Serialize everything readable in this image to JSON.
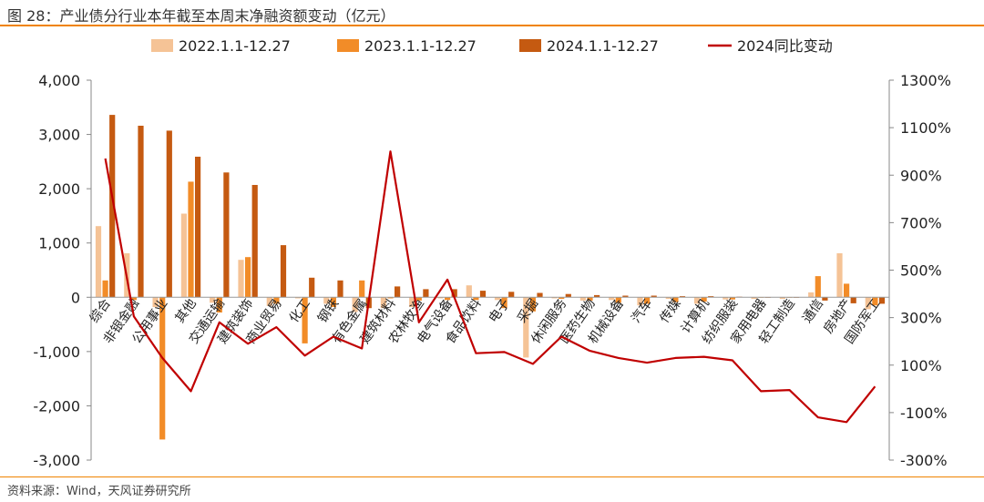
{
  "header": {
    "title": "图 28：产业债分行业本年截至本周末净融资额变动（亿元）"
  },
  "footer": {
    "source": "资料来源：Wind，天风证券研究所"
  },
  "colors": {
    "series1": "#f5c396",
    "series2": "#f28c28",
    "series3": "#c55a11",
    "line": "#c00000",
    "accent": "#f08300"
  },
  "chart_data": {
    "type": "bar",
    "title": "",
    "xlabel": "",
    "ylabel": "",
    "legend_position": "top",
    "grid": false,
    "ylim": [
      -3000,
      4000
    ],
    "y_ticks": [
      "4,000",
      "3,000",
      "2,000",
      "1,000",
      "0",
      "-1,000",
      "-2,000",
      "-3,000"
    ],
    "y2lim": [
      -3,
      13
    ],
    "y2_ticks": [
      "1300%",
      "1100%",
      "900%",
      "700%",
      "500%",
      "300%",
      "100%",
      "-100%",
      "-300%"
    ],
    "categories": [
      "综合",
      "非银金融",
      "公用事业",
      "其他",
      "交通运输",
      "建筑装饰",
      "商业贸易",
      "化工",
      "钢铁",
      "有色金属",
      "建筑材料",
      "农林牧渔",
      "电气设备",
      "食品饮料",
      "电子",
      "采掘",
      "休闲服务",
      "医药生物",
      "机械设备",
      "汽车",
      "传媒",
      "计算机",
      "纺织服装",
      "家用电器",
      "轻工制造",
      "通信",
      "房地产",
      "国防军工"
    ],
    "series": [
      {
        "name": "2022.1.1-12.27",
        "values": [
          1310,
          810,
          -180,
          1540,
          -100,
          690,
          -160,
          -20,
          -120,
          -270,
          -200,
          -180,
          -20,
          220,
          -50,
          -1110,
          -20,
          -60,
          -50,
          -150,
          -30,
          -120,
          -40,
          -30,
          -30,
          90,
          810,
          -220
        ]
      },
      {
        "name": "2023.1.1-12.27",
        "values": [
          310,
          -50,
          -2620,
          2130,
          -280,
          740,
          -120,
          -850,
          -180,
          310,
          -20,
          -60,
          -50,
          -50,
          -200,
          -260,
          -30,
          -60,
          -100,
          -120,
          -90,
          -80,
          -40,
          0,
          0,
          390,
          250,
          -150
        ]
      },
      {
        "name": "2024.1.1-12.27",
        "values": [
          3360,
          3160,
          3070,
          2590,
          2300,
          2070,
          960,
          360,
          310,
          -200,
          200,
          150,
          150,
          120,
          100,
          80,
          60,
          40,
          30,
          30,
          20,
          20,
          10,
          0,
          0,
          -60,
          -110,
          -120
        ]
      }
    ],
    "line_series": {
      "name": "2024同比变动",
      "axis": "right",
      "values": [
        9.7,
        3.05,
        1.3,
        -0.1,
        2.8,
        1.9,
        2.6,
        1.4,
        2.2,
        1.7,
        10.0,
        2.8,
        4.6,
        1.5,
        1.55,
        1.05,
        2.2,
        1.6,
        1.3,
        1.1,
        1.3,
        1.35,
        1.2,
        -0.1,
        -0.05,
        -1.2,
        -1.4,
        0.1
      ]
    }
  }
}
